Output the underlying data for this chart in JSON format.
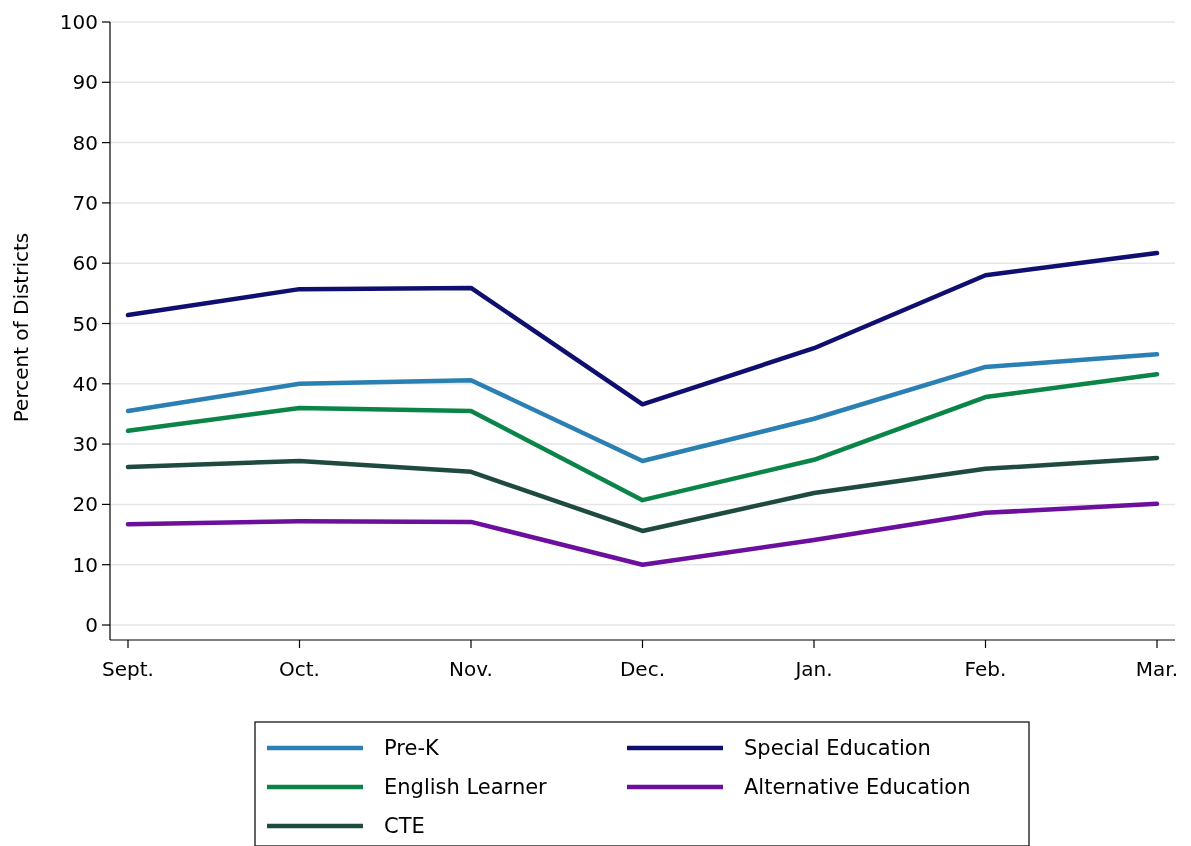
{
  "chart_data": {
    "type": "line",
    "ylabel": "Percent of Districts",
    "categories": [
      "Sept.",
      "Oct.",
      "Nov.",
      "Dec.",
      "Jan.",
      "Feb.",
      "Mar."
    ],
    "ylim": [
      0,
      100
    ],
    "yticks": [
      0,
      10,
      20,
      30,
      40,
      50,
      60,
      70,
      80,
      90,
      100
    ],
    "grid": "y",
    "legend": "bottom",
    "line_style": "solid",
    "marker": "none",
    "series": [
      {
        "name": "Pre-K",
        "color": "#2a7fb3",
        "values": [
          35.5,
          40.0,
          40.6,
          27.2,
          34.2,
          42.8,
          44.9
        ]
      },
      {
        "name": "English Learner",
        "color": "#0a8447",
        "values": [
          32.2,
          36.0,
          35.5,
          20.7,
          27.4,
          37.8,
          41.6
        ]
      },
      {
        "name": "CTE",
        "color": "#1f4a40",
        "values": [
          26.2,
          27.2,
          25.4,
          15.6,
          21.9,
          25.9,
          27.7
        ]
      },
      {
        "name": "Special Education",
        "color": "#0f0f70",
        "values": [
          51.4,
          55.7,
          55.9,
          36.6,
          45.9,
          58.0,
          61.7
        ]
      },
      {
        "name": "Alternative Education",
        "color": "#6b0f9c",
        "values": [
          16.7,
          17.2,
          17.1,
          10.0,
          14.1,
          18.6,
          20.1
        ]
      }
    ]
  }
}
